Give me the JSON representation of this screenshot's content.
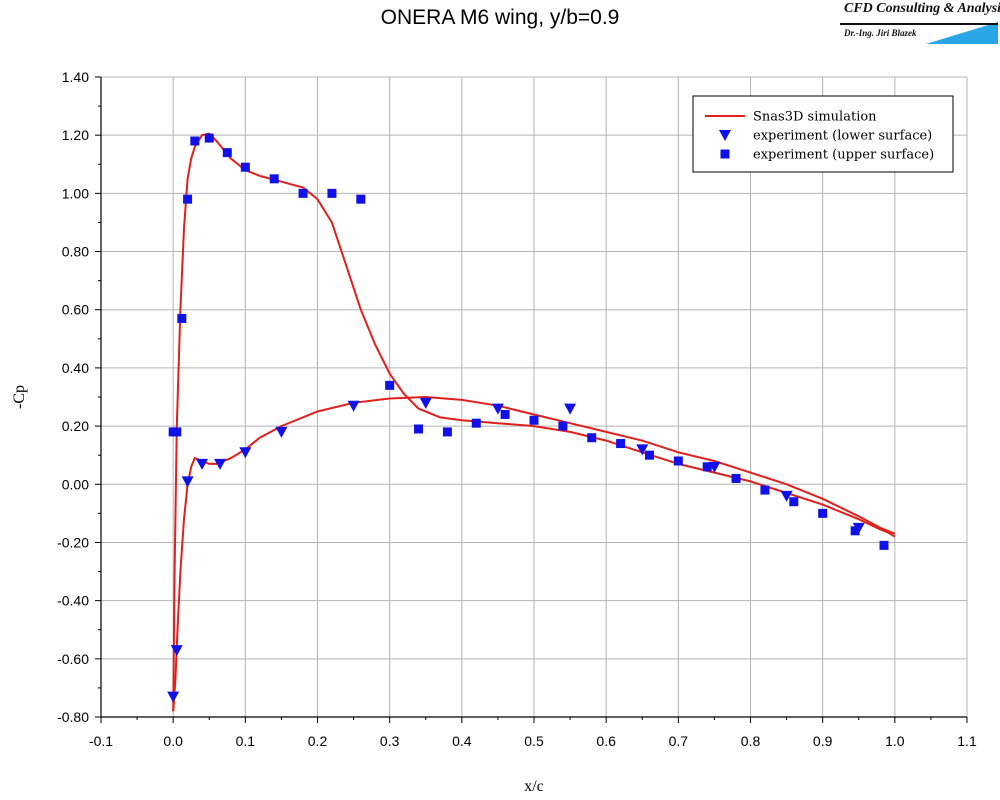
{
  "logo": {
    "title": "CFD Consulting & Analysis",
    "author": "Dr.-Ing. Jiri Blazek"
  },
  "chart_data": {
    "type": "line",
    "title": "ONERA M6 wing, y/b=0.9",
    "xlabel": "x/c",
    "ylabel": "-Cp",
    "xlim": [
      -0.1,
      1.1
    ],
    "ylim": [
      -0.8,
      1.4
    ],
    "x_ticks": [
      "-0.1",
      "0.0",
      "0.1",
      "0.2",
      "0.3",
      "0.4",
      "0.5",
      "0.6",
      "0.7",
      "0.8",
      "0.9",
      "1.0",
      "1.1"
    ],
    "y_ticks": [
      "-0.80",
      "-0.60",
      "-0.40",
      "-0.20",
      "0.00",
      "0.20",
      "0.40",
      "0.60",
      "0.80",
      "1.00",
      "1.20",
      "1.40"
    ],
    "grid": true,
    "legend_position": "top-right",
    "colors": {
      "simulation": "#e0201c",
      "experiment": "#1010e8"
    },
    "series": [
      {
        "name": "Snas3D simulation",
        "kind": "line",
        "segments": [
          {
            "part": "upper",
            "x": [
              0.0,
              0.002,
              0.005,
              0.01,
              0.015,
              0.02,
              0.025,
              0.03,
              0.04,
              0.05,
              0.06,
              0.08,
              0.1,
              0.12,
              0.15,
              0.18,
              0.2,
              0.22,
              0.24,
              0.26,
              0.28,
              0.3,
              0.32,
              0.34,
              0.37,
              0.4,
              0.45,
              0.5,
              0.55,
              0.6,
              0.65,
              0.7,
              0.75,
              0.8,
              0.85,
              0.9,
              0.95,
              0.98,
              0.99,
              1.0
            ],
            "y": [
              -0.78,
              -0.3,
              0.2,
              0.6,
              0.88,
              1.05,
              1.12,
              1.16,
              1.2,
              1.205,
              1.18,
              1.12,
              1.08,
              1.06,
              1.04,
              1.02,
              0.98,
              0.9,
              0.75,
              0.6,
              0.48,
              0.38,
              0.31,
              0.26,
              0.23,
              0.22,
              0.21,
              0.2,
              0.18,
              0.15,
              0.11,
              0.07,
              0.04,
              0.01,
              -0.03,
              -0.07,
              -0.12,
              -0.155,
              -0.165,
              -0.18
            ]
          },
          {
            "part": "lower",
            "x": [
              0.0,
              0.003,
              0.006,
              0.01,
              0.015,
              0.02,
              0.025,
              0.03,
              0.04,
              0.05,
              0.06,
              0.08,
              0.1,
              0.12,
              0.15,
              0.2,
              0.25,
              0.3,
              0.35,
              0.4,
              0.45,
              0.5,
              0.55,
              0.6,
              0.65,
              0.7,
              0.75,
              0.8,
              0.85,
              0.9,
              0.95,
              0.98,
              0.99,
              1.0
            ],
            "y": [
              -0.78,
              -0.68,
              -0.5,
              -0.3,
              -0.12,
              0.0,
              0.06,
              0.09,
              0.08,
              0.07,
              0.07,
              0.09,
              0.12,
              0.16,
              0.2,
              0.25,
              0.28,
              0.295,
              0.3,
              0.29,
              0.27,
              0.24,
              0.21,
              0.18,
              0.15,
              0.11,
              0.08,
              0.04,
              0.0,
              -0.05,
              -0.11,
              -0.15,
              -0.16,
              -0.17
            ]
          }
        ]
      },
      {
        "name": "experiment (lower surface)",
        "kind": "scatter",
        "marker": "triangle-down",
        "x": [
          0.0,
          0.005,
          0.02,
          0.04,
          0.065,
          0.1,
          0.15,
          0.25,
          0.35,
          0.45,
          0.55,
          0.65,
          0.75,
          0.85,
          0.95
        ],
        "y": [
          -0.73,
          -0.57,
          0.01,
          0.07,
          0.07,
          0.11,
          0.18,
          0.27,
          0.28,
          0.26,
          0.26,
          0.12,
          0.06,
          -0.04,
          -0.15
        ]
      },
      {
        "name": "experiment (upper surface)",
        "kind": "scatter",
        "marker": "square",
        "x": [
          0.0,
          0.005,
          0.012,
          0.02,
          0.03,
          0.05,
          0.075,
          0.1,
          0.14,
          0.18,
          0.22,
          0.26,
          0.3,
          0.34,
          0.38,
          0.42,
          0.46,
          0.5,
          0.54,
          0.58,
          0.62,
          0.66,
          0.7,
          0.74,
          0.78,
          0.82,
          0.86,
          0.9,
          0.945,
          0.985
        ],
        "y": [
          0.18,
          0.18,
          0.57,
          0.98,
          1.18,
          1.19,
          1.14,
          1.09,
          1.05,
          1.0,
          1.0,
          0.98,
          0.34,
          0.19,
          0.18,
          0.21,
          0.24,
          0.22,
          0.2,
          0.16,
          0.14,
          0.1,
          0.08,
          0.06,
          0.02,
          -0.02,
          -0.06,
          -0.1,
          -0.16,
          -0.21
        ]
      }
    ]
  }
}
